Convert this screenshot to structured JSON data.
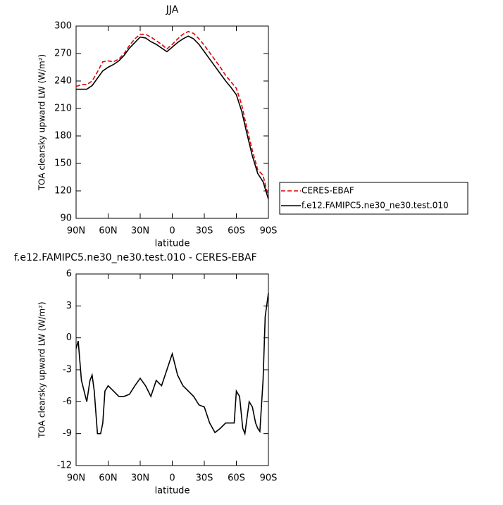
{
  "chart_data": [
    {
      "type": "line",
      "title": "JJA",
      "xlabel": "latitude",
      "ylabel": "TOA clearsky upward LW (W/m²)",
      "x": [
        90,
        85,
        80,
        75,
        70,
        65,
        60,
        55,
        50,
        45,
        40,
        35,
        30,
        25,
        20,
        15,
        10,
        5,
        0,
        -5,
        -10,
        -15,
        -20,
        -25,
        -30,
        -35,
        -40,
        -45,
        -50,
        -55,
        -60,
        -65,
        -70,
        -75,
        -80,
        -85,
        -90
      ],
      "xlim": [
        90,
        -90
      ],
      "xticks": [
        {
          "value": 90,
          "label": "90N"
        },
        {
          "value": 60,
          "label": "60N"
        },
        {
          "value": 30,
          "label": "30N"
        },
        0,
        {
          "value": -30,
          "label": "30S"
        },
        {
          "value": -60,
          "label": "60S"
        },
        {
          "value": -90,
          "label": "90S"
        }
      ],
      "ylim": [
        90,
        300
      ],
      "yticks": [
        90,
        120,
        150,
        180,
        210,
        240,
        270,
        300
      ],
      "legend": "right",
      "series": [
        {
          "name": "CERES-EBAF",
          "color": "#e00000",
          "dash": "dashed",
          "values": [
            234,
            236,
            236,
            240,
            250,
            261,
            262,
            261,
            264,
            270,
            279,
            286,
            291,
            291,
            288,
            284,
            280,
            275,
            280,
            286,
            291,
            294,
            292,
            286,
            279,
            271,
            263,
            255,
            246,
            239,
            232,
            214,
            188,
            164,
            143,
            137,
            113
          ]
        },
        {
          "name": "f.e12.FAMIPC5.ne30_ne30.test.010",
          "color": "#000000",
          "dash": "solid",
          "values": [
            231,
            231,
            231,
            235,
            243,
            251,
            255,
            258,
            262,
            268,
            276,
            282,
            288,
            287,
            283,
            280,
            276,
            272,
            277,
            282,
            286,
            289,
            286,
            280,
            272,
            264,
            256,
            248,
            240,
            233,
            225,
            207,
            182,
            158,
            139,
            130,
            111
          ]
        }
      ]
    },
    {
      "type": "line",
      "title": "f.e12.FAMIPC5.ne30_ne30.test.010 - CERES-EBAF",
      "xlabel": "latitude",
      "ylabel": "TOA clearsky upward LW (W/m²)",
      "x": [
        90,
        88,
        85,
        80,
        77,
        75,
        73,
        70,
        67,
        65,
        63,
        60,
        55,
        50,
        45,
        40,
        35,
        30,
        25,
        20,
        15,
        10,
        5,
        0,
        -5,
        -10,
        -15,
        -20,
        -25,
        -30,
        -35,
        -40,
        -45,
        -50,
        -55,
        -58,
        -60,
        -63,
        -66,
        -68,
        -72,
        -75,
        -78,
        -80,
        -82,
        -85,
        -87,
        -90
      ],
      "xlim": [
        90,
        -90
      ],
      "xticks": [
        {
          "value": 90,
          "label": "90N"
        },
        {
          "value": 60,
          "label": "60N"
        },
        {
          "value": 30,
          "label": "30N"
        },
        0,
        {
          "value": -30,
          "label": "30S"
        },
        {
          "value": -60,
          "label": "60S"
        },
        {
          "value": -90,
          "label": "90S"
        }
      ],
      "ylim": [
        -12,
        6
      ],
      "yticks": [
        -12,
        -9,
        -6,
        -3,
        0,
        3,
        6
      ],
      "series": [
        {
          "color": "#000000",
          "dash": "solid",
          "values": [
            -1,
            -0.3,
            -4,
            -6,
            -4,
            -3.5,
            -5,
            -9,
            -9,
            -8,
            -5,
            -4.5,
            -5,
            -5.5,
            -5.5,
            -5.3,
            -4.5,
            -3.8,
            -4.5,
            -5.5,
            -4,
            -4.5,
            -3,
            -1.5,
            -3.5,
            -4.5,
            -5,
            -5.5,
            -6.3,
            -6.5,
            -8,
            -8.9,
            -8.5,
            -8,
            -8,
            -8,
            -5,
            -5.5,
            -8.5,
            -9,
            -6,
            -6.5,
            -8,
            -8.5,
            -8.8,
            -4,
            2,
            4.2
          ]
        }
      ]
    }
  ]
}
